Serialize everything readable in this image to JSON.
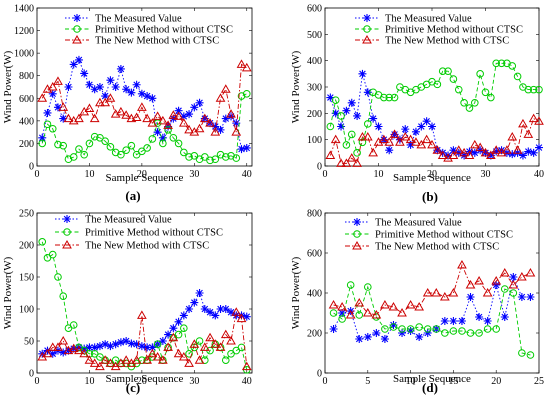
{
  "chart_data": [
    {
      "type": "line",
      "panel_label": "(a)",
      "xlabel": "Sample Sequence",
      "ylabel": "Wind Power(W)",
      "xlim": [
        0,
        41
      ],
      "ylim": [
        0,
        1400
      ],
      "xticks": [
        "0",
        "10",
        "20",
        "30",
        "40"
      ],
      "yticks": [
        "0",
        "200",
        "400",
        "600",
        "800",
        "1000",
        "1200",
        "1400"
      ],
      "legend": "top-left",
      "series": [
        {
          "name": "The Measured Value",
          "color": "#0000ff",
          "marker": "star",
          "style": "dotted",
          "x": [
            1,
            2,
            3,
            4,
            5,
            6,
            7,
            8,
            9,
            10,
            11,
            12,
            13,
            14,
            15,
            16,
            17,
            18,
            19,
            20,
            21,
            22,
            23,
            24,
            25,
            26,
            27,
            28,
            29,
            30,
            31,
            32,
            33,
            34,
            35,
            36,
            37,
            38,
            39,
            40
          ],
          "y": [
            250,
            470,
            640,
            520,
            420,
            700,
            900,
            940,
            820,
            720,
            680,
            700,
            620,
            760,
            700,
            860,
            680,
            650,
            720,
            640,
            620,
            600,
            300,
            250,
            350,
            420,
            490,
            440,
            460,
            520,
            560,
            420,
            380,
            350,
            320,
            420,
            440,
            380,
            150,
            160
          ]
        },
        {
          "name": "Primitive Method without CTSC",
          "color": "#00cc00",
          "marker": "circle",
          "style": "dashed",
          "x": [
            1,
            2,
            3,
            4,
            5,
            6,
            7,
            8,
            9,
            10,
            11,
            12,
            13,
            14,
            15,
            16,
            17,
            18,
            19,
            20,
            21,
            22,
            23,
            24,
            25,
            26,
            27,
            28,
            29,
            30,
            31,
            32,
            33,
            34,
            35,
            36,
            37,
            38,
            39,
            40
          ],
          "y": [
            200,
            370,
            330,
            190,
            180,
            60,
            80,
            150,
            100,
            200,
            260,
            250,
            220,
            170,
            120,
            100,
            140,
            180,
            100,
            130,
            160,
            240,
            380,
            200,
            320,
            250,
            200,
            120,
            80,
            90,
            60,
            80,
            50,
            60,
            100,
            80,
            90,
            70,
            620,
            640
          ]
        },
        {
          "name": "The New Method with CTSC",
          "color": "#cc0000",
          "marker": "triangle",
          "style": "dashdot",
          "x": [
            1,
            2,
            3,
            4,
            5,
            6,
            7,
            8,
            9,
            10,
            11,
            12,
            13,
            14,
            15,
            16,
            17,
            18,
            19,
            20,
            21,
            22,
            23,
            24,
            25,
            26,
            27,
            28,
            29,
            30,
            31,
            32,
            33,
            34,
            35,
            36,
            37,
            38,
            39,
            40
          ],
          "y": [
            600,
            680,
            700,
            750,
            520,
            420,
            400,
            420,
            480,
            510,
            420,
            560,
            560,
            600,
            460,
            480,
            450,
            420,
            430,
            520,
            420,
            380,
            440,
            400,
            360,
            450,
            440,
            380,
            320,
            300,
            330,
            420,
            380,
            300,
            600,
            680,
            460,
            300,
            900,
            870
          ]
        }
      ]
    },
    {
      "type": "line",
      "panel_label": "(b)",
      "xlabel": "Sample Sequence",
      "ylabel": "Wind Power(W)",
      "xlim": [
        0,
        40
      ],
      "ylim": [
        0,
        600
      ],
      "xticks": [
        "0",
        "10",
        "20",
        "30",
        "40"
      ],
      "yticks": [
        "0",
        "100",
        "200",
        "300",
        "400",
        "500",
        "600"
      ],
      "legend": "top-right",
      "series": [
        {
          "name": "The Measured Value",
          "color": "#0000ff",
          "marker": "star",
          "style": "dotted",
          "x": [
            1,
            2,
            3,
            4,
            5,
            6,
            7,
            8,
            9,
            10,
            11,
            12,
            13,
            14,
            15,
            16,
            17,
            18,
            19,
            20,
            21,
            22,
            23,
            24,
            25,
            26,
            27,
            28,
            29,
            30,
            31,
            32,
            33,
            34,
            35,
            36,
            37,
            38,
            39,
            40
          ],
          "y": [
            260,
            200,
            150,
            210,
            240,
            190,
            350,
            280,
            180,
            150,
            100,
            60,
            120,
            100,
            140,
            80,
            130,
            150,
            170,
            150,
            60,
            50,
            40,
            60,
            50,
            40,
            55,
            50,
            60,
            50,
            40,
            55,
            60,
            50,
            45,
            50,
            40,
            55,
            50,
            70
          ]
        },
        {
          "name": "Primitive Method without CTSC",
          "color": "#00cc00",
          "marker": "circle",
          "style": "dashed",
          "x": [
            1,
            2,
            3,
            4,
            5,
            6,
            7,
            8,
            9,
            10,
            11,
            12,
            13,
            14,
            15,
            16,
            17,
            18,
            19,
            20,
            21,
            22,
            23,
            24,
            25,
            26,
            27,
            28,
            29,
            30,
            31,
            32,
            33,
            34,
            35,
            36,
            37,
            38,
            39,
            40
          ],
          "y": [
            150,
            250,
            190,
            80,
            120,
            50,
            90,
            160,
            280,
            270,
            260,
            260,
            260,
            300,
            290,
            280,
            290,
            300,
            310,
            320,
            310,
            360,
            360,
            330,
            290,
            240,
            220,
            240,
            350,
            280,
            260,
            390,
            390,
            390,
            380,
            340,
            300,
            290,
            290,
            290
          ]
        },
        {
          "name": "The New Method with CTSC",
          "color": "#cc0000",
          "marker": "triangle",
          "style": "dashdot",
          "x": [
            1,
            2,
            3,
            4,
            5,
            6,
            7,
            8,
            9,
            10,
            11,
            12,
            13,
            14,
            15,
            16,
            17,
            18,
            19,
            20,
            21,
            22,
            23,
            24,
            25,
            26,
            27,
            28,
            29,
            30,
            31,
            32,
            33,
            34,
            35,
            36,
            37,
            38,
            39,
            40
          ],
          "y": [
            40,
            100,
            10,
            10,
            30,
            10,
            110,
            110,
            50,
            90,
            100,
            90,
            120,
            90,
            110,
            100,
            90,
            80,
            100,
            80,
            60,
            40,
            30,
            40,
            60,
            50,
            40,
            80,
            70,
            50,
            40,
            60,
            50,
            60,
            110,
            60,
            160,
            120,
            180,
            170
          ]
        }
      ]
    },
    {
      "type": "line",
      "panel_label": "(c)",
      "xlabel": "Sample Sequence",
      "ylabel": "Wind Power(W)",
      "xlim": [
        0,
        41
      ],
      "ylim": [
        0,
        250
      ],
      "xticks": [
        "0",
        "10",
        "20",
        "30",
        "40"
      ],
      "yticks": [
        "0",
        "50",
        "100",
        "150",
        "200",
        "250"
      ],
      "legend": "top-right",
      "series": [
        {
          "name": "The Measured Value",
          "color": "#0000ff",
          "marker": "star",
          "style": "dotted",
          "x": [
            1,
            2,
            3,
            4,
            5,
            6,
            7,
            8,
            9,
            10,
            11,
            12,
            13,
            14,
            15,
            16,
            17,
            18,
            19,
            20,
            21,
            22,
            23,
            24,
            25,
            26,
            27,
            28,
            29,
            30,
            31,
            32,
            33,
            34,
            35,
            36,
            37,
            38,
            39,
            40
          ],
          "y": [
            30,
            35,
            30,
            35,
            32,
            35,
            38,
            40,
            38,
            40,
            40,
            42,
            45,
            42,
            45,
            48,
            50,
            46,
            45,
            42,
            40,
            40,
            45,
            50,
            60,
            70,
            80,
            90,
            100,
            110,
            125,
            100,
            95,
            90,
            100,
            100,
            95,
            90,
            90,
            88
          ]
        },
        {
          "name": "Primitive Method without CTSC",
          "color": "#00cc00",
          "marker": "circle",
          "style": "dashed",
          "x": [
            1,
            2,
            3,
            4,
            5,
            6,
            7,
            8,
            9,
            10,
            11,
            12,
            13,
            14,
            15,
            16,
            17,
            18,
            19,
            20,
            21,
            22,
            23,
            24,
            25,
            26,
            27,
            28,
            29,
            30,
            31,
            32,
            33,
            34,
            35,
            36,
            37,
            38,
            39,
            40
          ],
          "y": [
            205,
            180,
            185,
            150,
            120,
            70,
            75,
            40,
            35,
            30,
            30,
            25,
            20,
            15,
            20,
            15,
            15,
            10,
            15,
            20,
            20,
            25,
            45,
            20,
            40,
            55,
            60,
            70,
            30,
            40,
            50,
            20,
            35,
            45,
            40,
            20,
            30,
            35,
            40,
            5
          ]
        },
        {
          "name": "The New Method with CTSC",
          "color": "#cc0000",
          "marker": "triangle",
          "style": "dashdot",
          "x": [
            1,
            2,
            3,
            4,
            5,
            6,
            7,
            8,
            9,
            10,
            11,
            12,
            13,
            14,
            15,
            16,
            17,
            18,
            19,
            20,
            21,
            22,
            23,
            24,
            25,
            26,
            27,
            28,
            29,
            30,
            31,
            32,
            33,
            34,
            35,
            36,
            37,
            38,
            39,
            40
          ],
          "y": [
            25,
            30,
            40,
            40,
            50,
            35,
            38,
            35,
            30,
            20,
            15,
            10,
            20,
            15,
            10,
            15,
            20,
            15,
            20,
            90,
            20,
            30,
            25,
            20,
            40,
            55,
            30,
            25,
            15,
            45,
            20,
            40,
            55,
            45,
            40,
            60,
            50,
            95,
            85,
            10
          ]
        }
      ]
    },
    {
      "type": "line",
      "panel_label": "(d)",
      "xlabel": "Sample Sequence",
      "ylabel": "Wind Power(W)",
      "xlim": [
        0,
        25
      ],
      "ylim": [
        0,
        800
      ],
      "xticks": [
        "0",
        "5",
        "10",
        "15",
        "20",
        "25"
      ],
      "yticks": [
        "0",
        "200",
        "400",
        "600",
        "800"
      ],
      "legend": "top-right",
      "series": [
        {
          "name": "The Measured Value",
          "color": "#0000ff",
          "marker": "star",
          "style": "dotted",
          "x": [
            1,
            2,
            3,
            4,
            5,
            6,
            7,
            8,
            9,
            10,
            11,
            12,
            13,
            14,
            15,
            16,
            17,
            18,
            19,
            20,
            21,
            22,
            23,
            24
          ],
          "y": [
            220,
            300,
            310,
            170,
            180,
            200,
            170,
            240,
            200,
            210,
            180,
            200,
            220,
            260,
            260,
            260,
            380,
            280,
            260,
            440,
            280,
            480,
            380,
            380
          ]
        },
        {
          "name": "Primitive Method without CTSC",
          "color": "#00cc00",
          "marker": "circle",
          "style": "dashed",
          "x": [
            1,
            2,
            3,
            4,
            5,
            6,
            7,
            8,
            9,
            10,
            11,
            12,
            13,
            14,
            15,
            16,
            17,
            18,
            19,
            20,
            21,
            22,
            23,
            24
          ],
          "y": [
            300,
            270,
            440,
            290,
            430,
            280,
            220,
            230,
            220,
            220,
            230,
            220,
            220,
            200,
            210,
            210,
            200,
            200,
            220,
            220,
            420,
            400,
            100,
            90
          ]
        },
        {
          "name": "The New Method with CTSC",
          "color": "#cc0000",
          "marker": "triangle",
          "style": "dashdot",
          "x": [
            1,
            2,
            3,
            4,
            5,
            6,
            7,
            8,
            9,
            10,
            11,
            12,
            13,
            14,
            15,
            16,
            17,
            18,
            19,
            20,
            21,
            22,
            23,
            24
          ],
          "y": [
            340,
            330,
            290,
            350,
            300,
            290,
            340,
            330,
            300,
            340,
            330,
            400,
            400,
            380,
            400,
            540,
            440,
            460,
            400,
            460,
            500,
            440,
            480,
            500
          ]
        }
      ]
    }
  ]
}
